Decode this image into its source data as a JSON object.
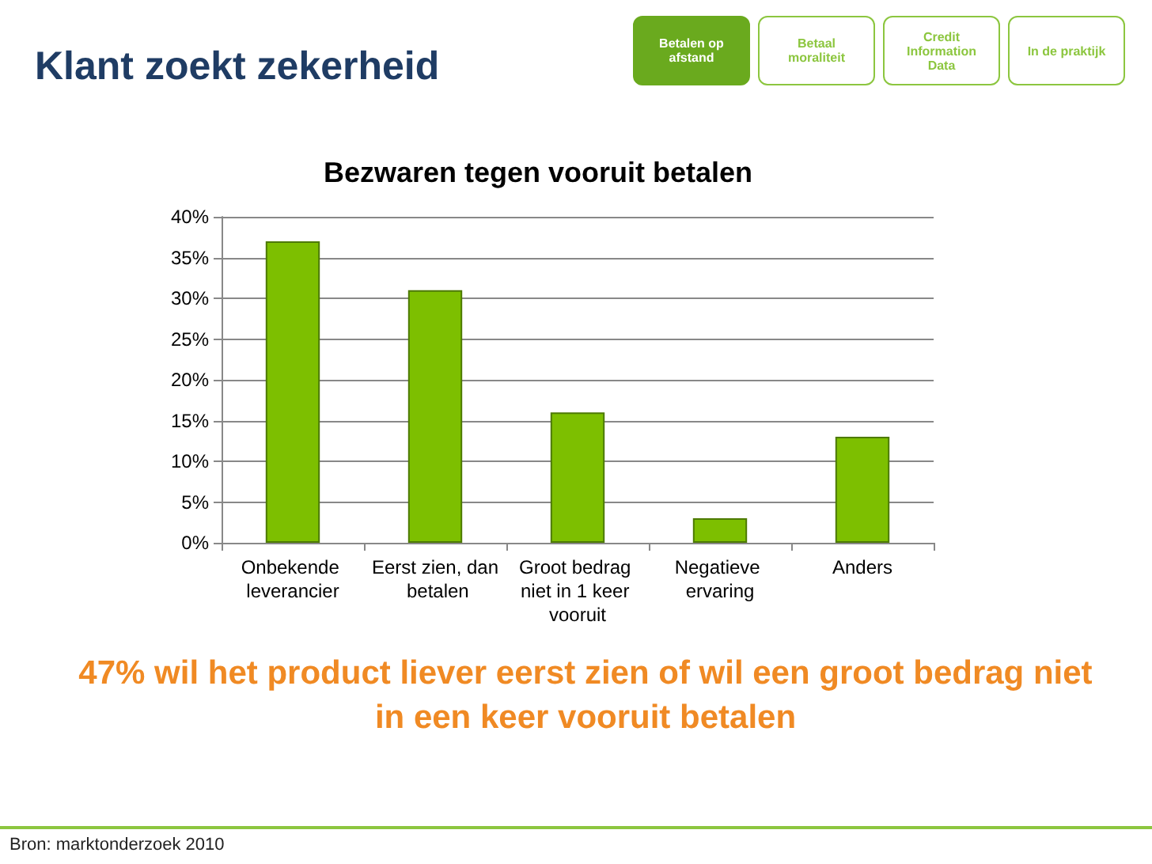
{
  "chart_data": {
    "type": "bar",
    "title": "Bezwaren tegen vooruit betalen",
    "categories": [
      "Onbekende leverancier",
      "Eerst zien, dan betalen",
      "Groot bedrag niet in 1 keer vooruit",
      "Negatieve ervaring",
      "Anders"
    ],
    "values": [
      37,
      31,
      16,
      3,
      13
    ],
    "color": "#7dbf00",
    "ylim": [
      0,
      40
    ],
    "yticks": [
      {
        "value": 0,
        "label": "0%"
      },
      {
        "value": 5,
        "label": "5%"
      },
      {
        "value": 10,
        "label": "10%"
      },
      {
        "value": 15,
        "label": "15%"
      },
      {
        "value": 20,
        "label": "20%"
      },
      {
        "value": 25,
        "label": "25%"
      },
      {
        "value": 30,
        "label": "30%"
      },
      {
        "value": 35,
        "label": "35%"
      },
      {
        "value": 40,
        "label": "40%"
      }
    ],
    "grid": "y",
    "annotations": [
      "Klant zoekt zekerheid",
      "Betalen op afstand",
      "Betaal moraliteit",
      "Credit Information Data",
      "In de praktijk",
      "47% wil het product liever eerst zien of wil een groot bedrag niet in een keer vooruit betalen",
      "Bron: marktonderzoek 2010"
    ]
  }
}
